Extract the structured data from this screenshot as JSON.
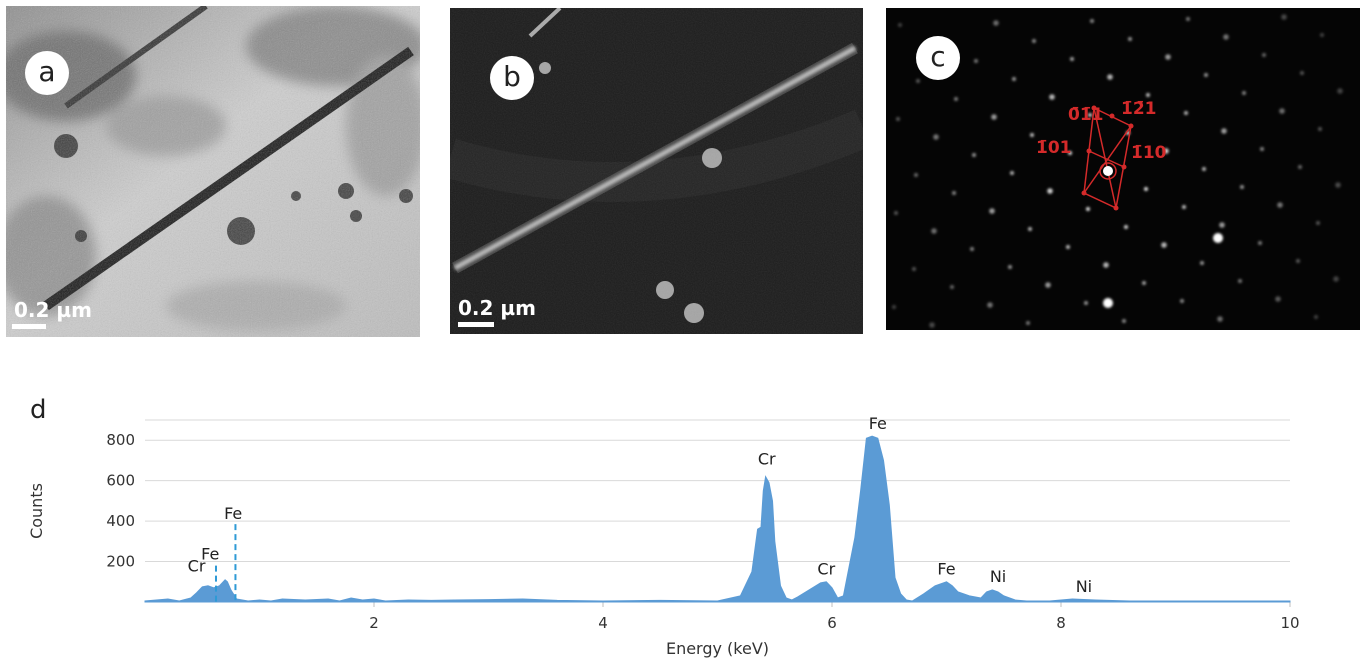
{
  "panels": {
    "a": {
      "label": "a",
      "scale_text": "0.2 µm"
    },
    "b": {
      "label": "b",
      "scale_text": "0.2 µm"
    },
    "c": {
      "label": "c",
      "indices": [
        "0̄1̄1",
        "1̄2̄1",
        "1̄01",
        "1̄10"
      ]
    },
    "d": {
      "label": "d"
    }
  },
  "colors": {
    "fill": "#5b9bd5",
    "index": "#d42a2a",
    "marker": "#2e9ad6"
  },
  "chart_data": {
    "type": "area",
    "xlabel": "Energy (keV)",
    "ylabel": "Counts",
    "xlim": [
      0,
      10
    ],
    "ylim": [
      0,
      900
    ],
    "xticks": [
      "2",
      "4",
      "6",
      "8",
      "10"
    ],
    "yticks": [
      "200",
      "400",
      "600",
      "800"
    ],
    "grid": true,
    "x": [
      0.0,
      0.1,
      0.2,
      0.3,
      0.4,
      0.45,
      0.5,
      0.55,
      0.6,
      0.65,
      0.7,
      0.72,
      0.75,
      0.8,
      0.9,
      1.0,
      1.1,
      1.2,
      1.4,
      1.6,
      1.7,
      1.8,
      1.9,
      2.0,
      2.1,
      2.3,
      2.5,
      2.7,
      3.0,
      3.3,
      3.6,
      4.0,
      4.5,
      5.0,
      5.2,
      5.3,
      5.35,
      5.38,
      5.4,
      5.42,
      5.45,
      5.48,
      5.5,
      5.55,
      5.6,
      5.65,
      5.7,
      5.8,
      5.9,
      5.95,
      6.0,
      6.05,
      6.1,
      6.2,
      6.25,
      6.3,
      6.35,
      6.4,
      6.45,
      6.5,
      6.55,
      6.6,
      6.65,
      6.7,
      6.8,
      6.9,
      7.0,
      7.05,
      7.1,
      7.2,
      7.3,
      7.35,
      7.4,
      7.45,
      7.5,
      7.6,
      7.7,
      7.9,
      8.1,
      8.3,
      8.6,
      9.0,
      9.5,
      10.0
    ],
    "y": [
      5,
      10,
      15,
      5,
      20,
      45,
      75,
      80,
      70,
      80,
      110,
      100,
      60,
      15,
      5,
      10,
      5,
      15,
      10,
      15,
      5,
      20,
      10,
      15,
      5,
      10,
      8,
      10,
      12,
      15,
      8,
      5,
      8,
      5,
      30,
      150,
      360,
      370,
      550,
      620,
      590,
      500,
      300,
      80,
      20,
      10,
      25,
      60,
      95,
      100,
      70,
      20,
      30,
      320,
      550,
      810,
      820,
      810,
      700,
      480,
      120,
      40,
      10,
      5,
      40,
      80,
      100,
      80,
      50,
      30,
      20,
      50,
      60,
      50,
      30,
      10,
      5,
      5,
      15,
      10,
      5,
      5,
      5,
      5
    ],
    "annotations": [
      {
        "text": "Cr",
        "x": 0.45,
        "y": 150
      },
      {
        "text": "Fe",
        "x": 0.57,
        "y": 210
      },
      {
        "text": "Fe",
        "x": 0.77,
        "y": 410
      },
      {
        "text": "Cr",
        "x": 5.43,
        "y": 680
      },
      {
        "text": "Cr",
        "x": 5.95,
        "y": 135
      },
      {
        "text": "Fe",
        "x": 6.4,
        "y": 855
      },
      {
        "text": "Fe",
        "x": 7.0,
        "y": 135
      },
      {
        "text": "Ni",
        "x": 7.45,
        "y": 100
      },
      {
        "text": "Ni",
        "x": 8.2,
        "y": 50
      }
    ],
    "markers": [
      {
        "x": 0.62,
        "y": 180
      },
      {
        "x": 0.79,
        "y": 385
      }
    ]
  }
}
